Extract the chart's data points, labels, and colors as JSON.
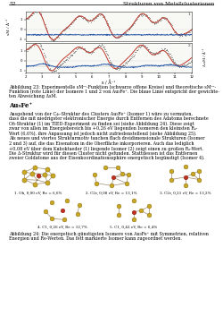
{
  "page_number": "52",
  "header_right": "Strukturen von Metallclusterionen",
  "fig23_caption_line1": "Abbildung 23: Experimentelle sMᵉᵉ-Funktion (schwarze offene Kreise) und theoretische sMᵉᵉ-",
  "fig23_caption_line2": "Funktion (rote Linie) der Isomere 1 und 2 von Au₉Fe⁺. Die blaue Linie entspricht der gewichte-",
  "fig23_caption_line3": "ten Abweichung ΔsM.",
  "section_title": "Au₉Fe⁺",
  "body_lines": [
    "Ausgehend von der C₄ᵥ-Struktur des Clusters Au₉Fe⁺ (Isomer 1) wäre zu vermuten,",
    "dass die mit niedrigster elektronischer Energie durch Entfernen des Adatoms berechnete",
    "Oℎ-Struktur (1) im TIED-Experiment zu finden sei (siehe Abbildung 24). Diese zeigt",
    "zwar von allen im Energiebereich bis +0,26 eV liegenden Isomeren den kleinsten Rₐ-",
    "Wert (6,6%), ihre Anpassung ist jedoch nicht zufriedenstellend (siehe Abbildung 25).",
    "Als neues und viertes Strukturmotiv tauchen flach dreidimensionale Strukturen (Isomer",
    "2 und 3) auf, die das Eisenatom in die Oberfläche inkorporieren. Auch das lediglich",
    "+0,08 eV über dem Kuboktaeder (1) liegende Isomer (2) zeigt einen zu großen Rₐ-Wert.",
    "Die Δ-Struktur wird für diesen Cluster nicht gefunden. Stattdessen ist das Entfernen",
    "zweier Goldatome aus der Eisenkoordinationssphäre energetisch begünstigt (Isomer 4)."
  ],
  "isomer_labels_row1": [
    "1. Oh, 0,00 eV, Re = 6,6%",
    "2. C2v, 0,08 eV, Re = 13,1%",
    "3. C2v, 0,21 eV, Re = 13,2%"
  ],
  "isomer_labels_row2": [
    "4. C1, 0,26 eV, Re = 12,7%",
    "5. C1, 0,42 eV, Re = 6,4%"
  ],
  "fig24_caption_line1": "Abbildung 24: Die energetisch günstigsten Isomere von Au₉Fe⁺ mit Symmetrien, relativen",
  "fig24_caption_line2": "Energien und Re-Werten. Das fett markierte Isomer kann zugeordnet werden.",
  "background_color": "#ffffff",
  "text_color": "#000000",
  "line_red": "#c0392b",
  "line_blue": "#2155a8",
  "gold_color": "#c8a820",
  "iron_color": "#c03020",
  "xlabel": "s / Å⁻¹",
  "ylabel_left": "sM / Å⁻¹",
  "ylabel_right": "ΔsMsM / Å⁻¹"
}
